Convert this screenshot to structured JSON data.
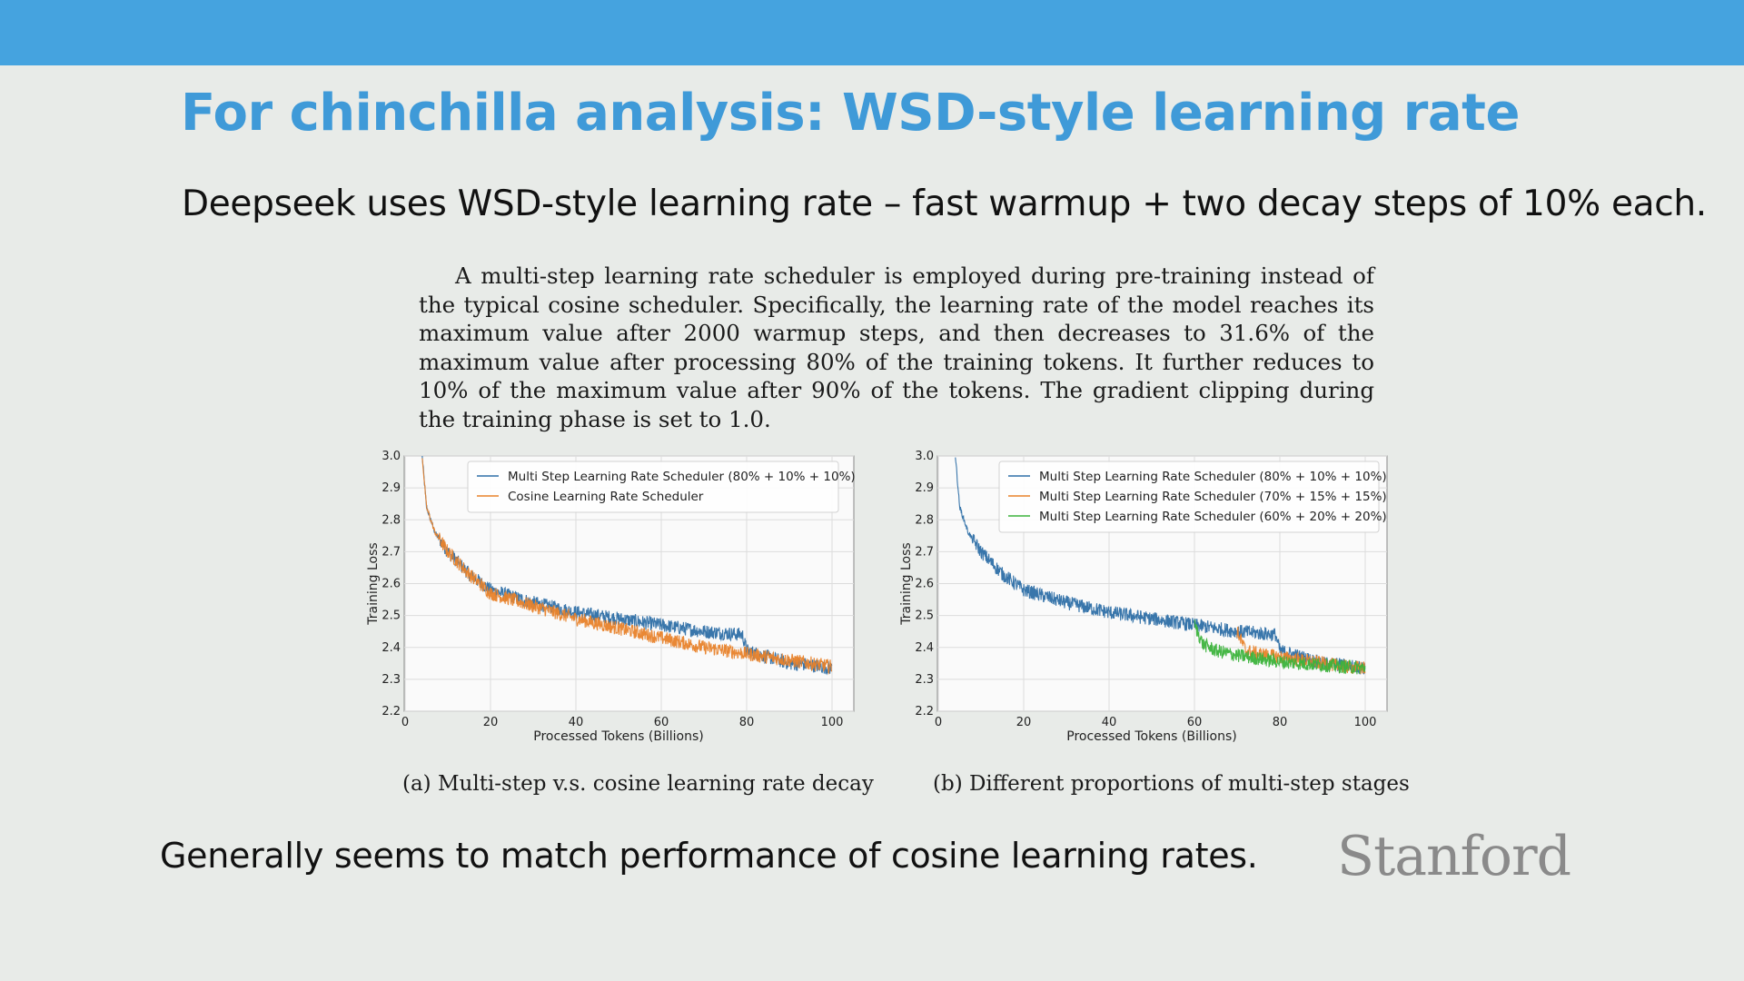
{
  "slide": {
    "title": "For chinchilla analysis: WSD-style learning rate",
    "subtitle": "Deepseek uses WSD-style learning rate – fast warmup + two decay steps of 10% each.",
    "quote": "A multi-step learning rate scheduler is employed during pre-training instead of the typical cosine scheduler. Specifically, the learning rate of the model reaches its maximum value after 2000 warmup steps, and then decreases to 31.6% of the maximum value after processing 80% of the training tokens. It further reduces to 10% of the maximum value after 90% of the tokens. The gradient clipping during the training phase is set to 1.0.",
    "footer": "Generally seems to match performance of cosine learning rates.",
    "logo": "Stanford",
    "accent_color": "#45a3df",
    "title_color": "#3f9ad8"
  },
  "chart_data": [
    {
      "type": "line",
      "caption": "(a) Multi-step v.s. cosine learning rate decay",
      "xlabel": "Processed Tokens (Billions)",
      "ylabel": "Training Loss",
      "xlim": [
        0,
        100
      ],
      "ylim": [
        2.2,
        3.0
      ],
      "xticks": [
        0,
        20,
        40,
        60,
        80,
        100
      ],
      "yticks": [
        2.2,
        2.3,
        2.4,
        2.5,
        2.6,
        2.7,
        2.8,
        2.9,
        3.0
      ],
      "grid": true,
      "legend_position": "top-right",
      "series": [
        {
          "name": "Multi Step Learning Rate Scheduler (80% + 10% + 10%)",
          "color": "#2e6fa7",
          "x": [
            4,
            5,
            7,
            10,
            15,
            20,
            30,
            40,
            50,
            60,
            70,
            79,
            80,
            85,
            90,
            95,
            100
          ],
          "y": [
            3.0,
            2.84,
            2.76,
            2.7,
            2.63,
            2.58,
            2.54,
            2.51,
            2.49,
            2.47,
            2.45,
            2.44,
            2.39,
            2.37,
            2.35,
            2.345,
            2.335
          ]
        },
        {
          "name": "Cosine Learning Rate Scheduler",
          "color": "#e8822a",
          "x": [
            4,
            5,
            7,
            10,
            15,
            20,
            30,
            40,
            50,
            60,
            70,
            80,
            90,
            100
          ],
          "y": [
            3.0,
            2.84,
            2.76,
            2.7,
            2.63,
            2.57,
            2.53,
            2.49,
            2.46,
            2.43,
            2.4,
            2.38,
            2.36,
            2.34
          ]
        }
      ]
    },
    {
      "type": "line",
      "caption": "(b) Different proportions of multi-step stages",
      "xlabel": "Processed Tokens (Billions)",
      "ylabel": "Training Loss",
      "xlim": [
        0,
        100
      ],
      "ylim": [
        2.2,
        3.0
      ],
      "xticks": [
        0,
        20,
        40,
        60,
        80,
        100
      ],
      "yticks": [
        2.2,
        2.3,
        2.4,
        2.5,
        2.6,
        2.7,
        2.8,
        2.9,
        3.0
      ],
      "grid": true,
      "legend_position": "top-right",
      "series": [
        {
          "name": "Multi Step Learning Rate Scheduler (80% + 10% + 10%)",
          "color": "#2e6fa7",
          "x": [
            4,
            5,
            7,
            10,
            15,
            20,
            30,
            40,
            50,
            60,
            70,
            79,
            80,
            85,
            90,
            95,
            100
          ],
          "y": [
            3.0,
            2.84,
            2.76,
            2.7,
            2.63,
            2.58,
            2.54,
            2.51,
            2.49,
            2.47,
            2.45,
            2.44,
            2.39,
            2.37,
            2.35,
            2.345,
            2.335
          ]
        },
        {
          "name": "Multi Step Learning Rate Scheduler (70% + 15% + 15%)",
          "color": "#e8822a",
          "x": [
            70,
            72,
            75,
            80,
            85,
            90,
            95,
            100
          ],
          "y": [
            2.45,
            2.39,
            2.38,
            2.37,
            2.36,
            2.35,
            2.34,
            2.335
          ]
        },
        {
          "name": "Multi Step Learning Rate Scheduler (60% + 20% + 20%)",
          "color": "#3cb33c",
          "x": [
            60,
            62,
            65,
            70,
            75,
            80,
            85,
            90,
            95,
            100
          ],
          "y": [
            2.47,
            2.41,
            2.39,
            2.375,
            2.365,
            2.355,
            2.35,
            2.345,
            2.34,
            2.335
          ]
        }
      ]
    }
  ]
}
